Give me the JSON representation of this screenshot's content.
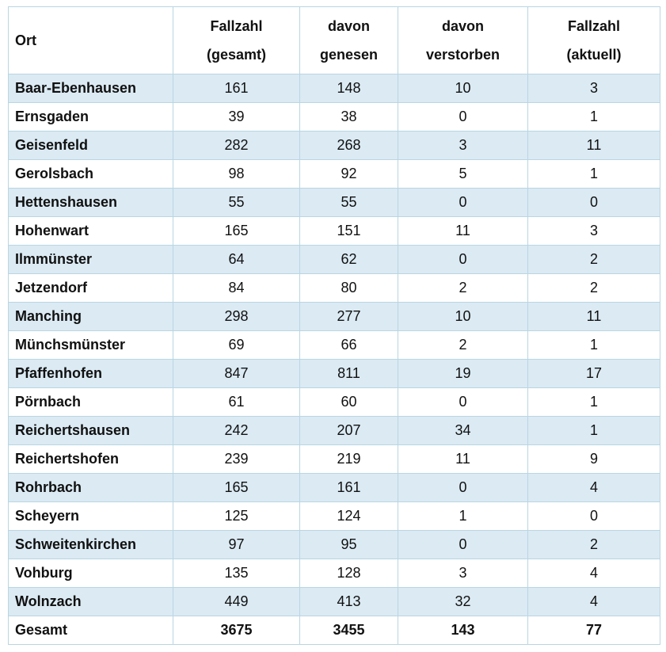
{
  "table": {
    "header": [
      [
        "Ort"
      ],
      [
        "Fallzahl",
        "(gesamt)"
      ],
      [
        "davon",
        "genesen"
      ],
      [
        "davon",
        "verstorben"
      ],
      [
        "Fallzahl",
        "(aktuell)"
      ]
    ],
    "rows": [
      [
        "Baar-Ebenhausen",
        161,
        148,
        10,
        3
      ],
      [
        "Ernsgaden",
        39,
        38,
        0,
        1
      ],
      [
        "Geisenfeld",
        282,
        268,
        3,
        11
      ],
      [
        "Gerolsbach",
        98,
        92,
        5,
        1
      ],
      [
        "Hettenshausen",
        55,
        55,
        0,
        0
      ],
      [
        "Hohenwart",
        165,
        151,
        11,
        3
      ],
      [
        "Ilmmünster",
        64,
        62,
        0,
        2
      ],
      [
        "Jetzendorf",
        84,
        80,
        2,
        2
      ],
      [
        "Manching",
        298,
        277,
        10,
        11
      ],
      [
        "Münchsmünster",
        69,
        66,
        2,
        1
      ],
      [
        "Pfaffenhofen",
        847,
        811,
        19,
        17
      ],
      [
        "Pörnbach",
        61,
        60,
        0,
        1
      ],
      [
        "Reichertshausen",
        242,
        207,
        34,
        1
      ],
      [
        "Reichertshofen",
        239,
        219,
        11,
        9
      ],
      [
        "Rohrbach",
        165,
        161,
        0,
        4
      ],
      [
        "Scheyern",
        125,
        124,
        1,
        0
      ],
      [
        "Schweitenkirchen",
        97,
        95,
        0,
        2
      ],
      [
        "Vohburg",
        135,
        128,
        3,
        4
      ],
      [
        "Wolnzach",
        449,
        413,
        32,
        4
      ]
    ],
    "total": [
      "Gesamt",
      3675,
      3455,
      143,
      77
    ]
  }
}
